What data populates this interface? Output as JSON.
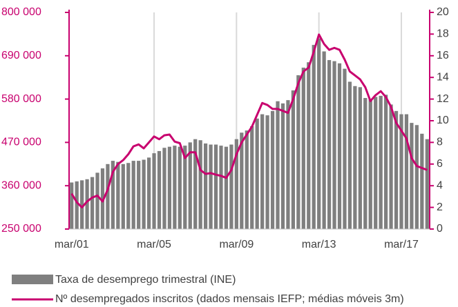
{
  "chart_data": {
    "type": "bar-line",
    "categories": [
      "mar/01",
      null,
      null,
      null,
      null,
      null,
      null,
      null,
      null,
      null,
      null,
      null,
      null,
      null,
      null,
      null,
      "mar/05",
      null,
      null,
      null,
      null,
      null,
      null,
      null,
      null,
      null,
      null,
      null,
      null,
      null,
      null,
      null,
      "mar/09",
      null,
      null,
      null,
      null,
      null,
      null,
      null,
      null,
      null,
      null,
      null,
      null,
      null,
      null,
      null,
      "mar/13",
      null,
      null,
      null,
      null,
      null,
      null,
      null,
      null,
      null,
      null,
      null,
      null,
      null,
      null,
      null,
      "mar/17",
      null,
      null,
      null,
      null,
      null
    ],
    "series": [
      {
        "name": "Taxa de desemprego trimestral (INE)",
        "color": "#7f7f7f",
        "axis": "y2",
        "values": [
          4.3,
          4.4,
          4.5,
          4.6,
          4.8,
          5.2,
          5.6,
          6.0,
          6.3,
          6.2,
          6.0,
          6.1,
          6.3,
          6.3,
          6.4,
          6.6,
          7.0,
          7.2,
          7.5,
          7.6,
          7.7,
          7.6,
          7.7,
          8.0,
          8.3,
          8.2,
          7.9,
          7.8,
          7.8,
          7.7,
          7.6,
          7.8,
          8.3,
          8.9,
          9.1,
          9.5,
          10.2,
          10.6,
          10.5,
          10.9,
          11.8,
          11.6,
          11.9,
          12.8,
          14.2,
          14.9,
          15.4,
          17.0,
          17.6,
          16.4,
          15.6,
          15.5,
          15.3,
          14.8,
          13.6,
          13.2,
          13.1,
          12.1,
          12.0,
          12.2,
          12.3,
          12.4,
          11.5,
          10.9,
          10.6,
          10.6,
          9.8,
          9.6,
          8.8,
          8.3
        ]
      },
      {
        "name": "Nº desempregados inscritos (dados mensais IEFP; médias móveis 3m)",
        "color": "#c8006e",
        "axis": "y",
        "values": [
          340000,
          318000,
          305000,
          320000,
          330000,
          335000,
          320000,
          350000,
          395000,
          415000,
          425000,
          440000,
          460000,
          465000,
          455000,
          470000,
          485000,
          478000,
          488000,
          490000,
          472000,
          468000,
          430000,
          445000,
          445000,
          400000,
          390000,
          392000,
          388000,
          385000,
          380000,
          400000,
          440000,
          470000,
          490000,
          510000,
          540000,
          570000,
          565000,
          555000,
          555000,
          550000,
          545000,
          580000,
          620000,
          650000,
          660000,
          700000,
          744000,
          720000,
          705000,
          710000,
          705000,
          680000,
          650000,
          640000,
          630000,
          610000,
          575000,
          590000,
          600000,
          585000,
          560000,
          520000,
          500000,
          480000,
          430000,
          410000,
          405000,
          400000
        ]
      }
    ],
    "ylim": [
      250000,
      800000
    ],
    "yticks": [
      {
        "value": 250000,
        "label": "250 000"
      },
      {
        "value": 360000,
        "label": "360 000"
      },
      {
        "value": 470000,
        "label": "470 000"
      },
      {
        "value": 580000,
        "label": "580 000"
      },
      {
        "value": 690000,
        "label": "690 000"
      },
      {
        "value": 800000,
        "label": "800 000"
      }
    ],
    "y2lim": [
      0,
      20
    ],
    "y2ticks": [
      0,
      2,
      4,
      6,
      8,
      10,
      12,
      14,
      16,
      18,
      20
    ],
    "grid": true
  }
}
